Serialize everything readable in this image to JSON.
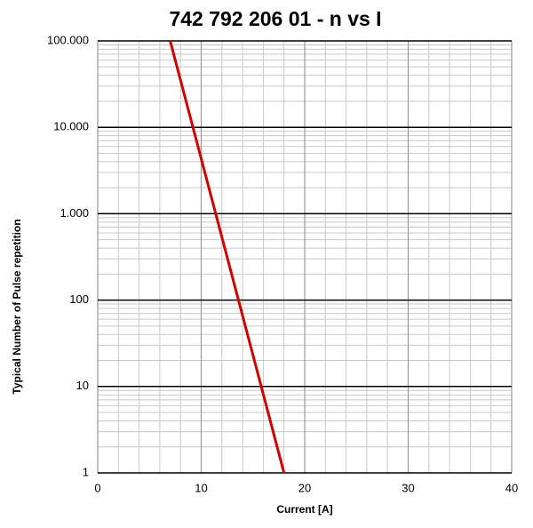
{
  "chart_data": {
    "type": "line",
    "title": "742 792 206 01  -  n vs I",
    "xlabel": "Current [A]",
    "ylabel": "Typical Number of Pulse repetition",
    "x": [
      7,
      18
    ],
    "series": [
      {
        "color": "#d40000",
        "values": [
          100000,
          1
        ]
      }
    ],
    "xlim": [
      0,
      40
    ],
    "xticks": [
      0,
      10,
      20,
      30,
      40
    ],
    "ylim": [
      1,
      100000
    ],
    "yticks": [
      1,
      10,
      100,
      {
        "value": 1000,
        "label": "1.000"
      },
      {
        "value": 10000,
        "label": "10.000"
      },
      {
        "value": 100000,
        "label": "100.000"
      }
    ],
    "yscale": "log",
    "grid": true
  }
}
